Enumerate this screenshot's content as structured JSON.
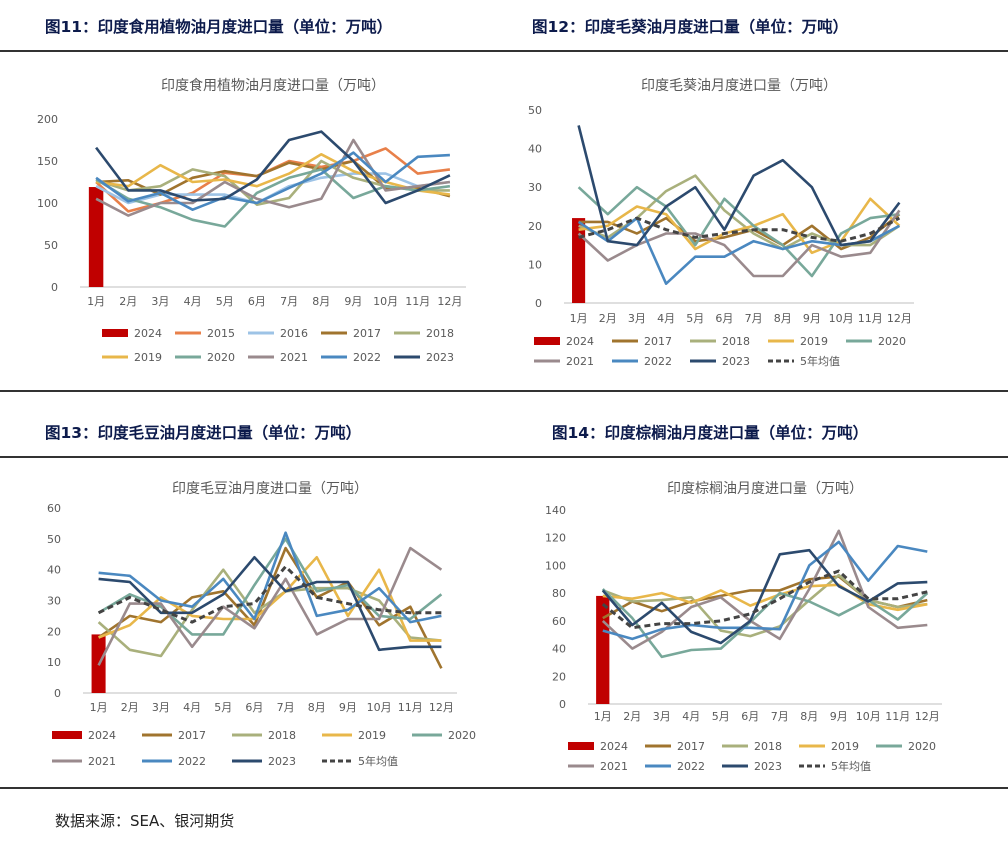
{
  "figures": [
    {
      "caption": "图11：印度食用植物油月度进口量（单位：万吨）",
      "chart_data": {
        "type": "line",
        "title": "印度食用植物油月度进口量（万吨）",
        "categories": [
          "1月",
          "2月",
          "3月",
          "4月",
          "5月",
          "6月",
          "7月",
          "8月",
          "9月",
          "10月",
          "11月",
          "12月"
        ],
        "ylim": [
          0,
          200
        ],
        "yticks": [
          0,
          50,
          100,
          150,
          200
        ],
        "grid": false,
        "legend": "bottom",
        "bar_series": {
          "name": "2024",
          "color": "#c00000",
          "values": [
            119
          ]
        },
        "series": [
          {
            "name": "2015",
            "color": "#e8804a",
            "dash": false,
            "values": [
              125,
              90,
              100,
              112,
              136,
              132,
              150,
              143,
              150,
              165,
              135,
              140
            ]
          },
          {
            "name": "2016",
            "color": "#9dc3e6",
            "dash": false,
            "values": [
              120,
              100,
              110,
              110,
              110,
              100,
              120,
              130,
              135,
              135,
              120,
              125
            ]
          },
          {
            "name": "2017",
            "color": "#a0742e",
            "dash": false,
            "values": [
              125,
              127,
              110,
              130,
              138,
              132,
              148,
              140,
              150,
              118,
              118,
              108
            ]
          },
          {
            "name": "2018",
            "color": "#a9b07c",
            "dash": false,
            "values": [
              127,
              115,
              120,
              140,
              132,
              98,
              106,
              150,
              130,
              120,
              115,
              115
            ]
          },
          {
            "name": "2019",
            "color": "#e8b74a",
            "dash": false,
            "values": [
              125,
              120,
              145,
              125,
              128,
              120,
              135,
              158,
              138,
              125,
              115,
              110
            ]
          },
          {
            "name": "2020",
            "color": "#78a89a",
            "dash": false,
            "values": [
              128,
              105,
              95,
              80,
              72,
              112,
              130,
              140,
              106,
              120,
              115,
              120
            ]
          },
          {
            "name": "2021",
            "color": "#9a8a8d",
            "dash": false,
            "values": [
              105,
              85,
              100,
              100,
              125,
              105,
              95,
              105,
              175,
              115,
              120,
              125
            ]
          },
          {
            "name": "2022",
            "color": "#4a88c0",
            "dash": false,
            "values": [
              130,
              102,
              112,
              92,
              107,
              100,
              118,
              135,
              160,
              125,
              155,
              157
            ]
          },
          {
            "name": "2023",
            "color": "#2c4a6e",
            "dash": false,
            "values": [
              166,
              115,
              115,
              103,
              105,
              128,
              175,
              185,
              150,
              100,
              115,
              133
            ]
          }
        ]
      }
    },
    {
      "caption": "图12：印度毛葵油月度进口量（单位：万吨）",
      "chart_data": {
        "type": "line",
        "title": "印度毛葵油月度进口量（万吨）",
        "categories": [
          "1月",
          "2月",
          "3月",
          "4月",
          "5月",
          "6月",
          "7月",
          "8月",
          "9月",
          "10月",
          "11月",
          "12月"
        ],
        "ylim": [
          0,
          50
        ],
        "yticks": [
          0,
          10,
          20,
          30,
          40,
          50
        ],
        "grid": false,
        "legend": "bottom",
        "bar_series": {
          "name": "2024",
          "color": "#c00000",
          "values": [
            22
          ]
        },
        "series": [
          {
            "name": "2017",
            "color": "#a0742e",
            "dash": false,
            "values": [
              21,
              21,
              18,
              22,
              16,
              17,
              19,
              15,
              20,
              14,
              17,
              23
            ]
          },
          {
            "name": "2018",
            "color": "#a9b07c",
            "dash": false,
            "values": [
              20,
              17,
              22,
              29,
              33,
              24,
              18,
              14,
              18,
              15,
              15,
              20
            ]
          },
          {
            "name": "2019",
            "color": "#e8b74a",
            "dash": false,
            "values": [
              19,
              20,
              25,
              23,
              14,
              18,
              20,
              23,
              13,
              16,
              27,
              20
            ]
          },
          {
            "name": "2020",
            "color": "#78a89a",
            "dash": false,
            "values": [
              30,
              23,
              30,
              25,
              15,
              27,
              20,
              15,
              7,
              18,
              22,
              23
            ]
          },
          {
            "name": "2021",
            "color": "#9a8a8d",
            "dash": false,
            "values": [
              18,
              11,
              15,
              18,
              18,
              15,
              7,
              7,
              15,
              12,
              13,
              24
            ]
          },
          {
            "name": "2022",
            "color": "#4a88c0",
            "dash": false,
            "values": [
              21,
              16,
              22,
              5,
              12,
              12,
              16,
              14,
              16,
              15,
              16,
              20
            ]
          },
          {
            "name": "2023",
            "color": "#2c4a6e",
            "dash": false,
            "values": [
              46,
              16,
              15,
              25,
              30,
              19,
              33,
              37,
              30,
              15,
              16,
              26
            ]
          },
          {
            "name": "5年均值",
            "color": "#444444",
            "dash": true,
            "values": [
              17,
              19,
              22,
              19,
              17,
              18,
              19,
              19,
              17,
              16,
              18,
              22
            ]
          }
        ]
      }
    },
    {
      "caption": "图13：印度毛豆油月度进口量（单位：万吨）",
      "chart_data": {
        "type": "line",
        "title": "印度毛豆油月度进口量（万吨）",
        "categories": [
          "1月",
          "2月",
          "3月",
          "4月",
          "5月",
          "6月",
          "7月",
          "8月",
          "9月",
          "10月",
          "11月",
          "12月"
        ],
        "ylim": [
          0,
          60
        ],
        "yticks": [
          0,
          10,
          20,
          30,
          40,
          50,
          60
        ],
        "grid": false,
        "legend": "bottom",
        "bar_series": {
          "name": "2024",
          "color": "#c00000",
          "values": [
            19
          ]
        },
        "series": [
          {
            "name": "2017",
            "color": "#a0742e",
            "dash": false,
            "values": [
              18,
              25,
              23,
              31,
              33,
              22,
              47,
              31,
              36,
              22,
              28,
              8
            ]
          },
          {
            "name": "2018",
            "color": "#a9b07c",
            "dash": false,
            "values": [
              23,
              14,
              12,
              27,
              40,
              26,
              33,
              34,
              34,
              30,
              18,
              17
            ]
          },
          {
            "name": "2019",
            "color": "#e8b74a",
            "dash": false,
            "values": [
              18,
              22,
              31,
              25,
              24,
              24,
              33,
              44,
              25,
              40,
              17,
              17
            ]
          },
          {
            "name": "2020",
            "color": "#78a89a",
            "dash": false,
            "values": [
              26,
              32,
              28,
              19,
              19,
              35,
              50,
              33,
              35,
              25,
              24,
              32
            ]
          },
          {
            "name": "2021",
            "color": "#9a8a8d",
            "dash": false,
            "values": [
              9,
              29,
              29,
              15,
              28,
              21,
              37,
              19,
              24,
              24,
              47,
              40
            ]
          },
          {
            "name": "2022",
            "color": "#4a88c0",
            "dash": false,
            "values": [
              39,
              38,
              30,
              28,
              37,
              24,
              52,
              25,
              27,
              34,
              23,
              25
            ]
          },
          {
            "name": "2023",
            "color": "#2c4a6e",
            "dash": false,
            "values": [
              37,
              36,
              26,
              26,
              32,
              44,
              33,
              36,
              36,
              14,
              15,
              15
            ]
          },
          {
            "name": "5年均值",
            "color": "#444444",
            "dash": true,
            "values": [
              26,
              31,
              27,
              23,
              28,
              29,
              41,
              31,
              29,
              27,
              26,
              26
            ]
          }
        ]
      }
    },
    {
      "caption": "图14：印度棕榈油月度进口量（单位：万吨）",
      "chart_data": {
        "type": "line",
        "title": "印度棕榈油月度进口量（万吨）",
        "categories": [
          "1月",
          "2月",
          "3月",
          "4月",
          "5月",
          "6月",
          "7月",
          "8月",
          "9月",
          "10月",
          "11月",
          "12月"
        ],
        "ylim": [
          0,
          140
        ],
        "yticks": [
          0,
          20,
          40,
          60,
          80,
          100,
          120,
          140
        ],
        "grid": false,
        "legend": "bottom",
        "bar_series": {
          "name": "2024",
          "color": "#c00000",
          "values": [
            78
          ]
        },
        "series": [
          {
            "name": "2017",
            "color": "#a0742e",
            "dash": false,
            "values": [
              62,
              74,
              67,
              74,
              78,
              82,
              82,
              90,
              92,
              75,
              70,
              75
            ]
          },
          {
            "name": "2018",
            "color": "#a9b07c",
            "dash": false,
            "values": [
              82,
              74,
              75,
              77,
              53,
              49,
              56,
              75,
              93,
              75,
              70,
              72
            ]
          },
          {
            "name": "2019",
            "color": "#e8b74a",
            "dash": false,
            "values": [
              78,
              76,
              80,
              73,
              82,
              71,
              79,
              85,
              86,
              72,
              68,
              72
            ]
          },
          {
            "name": "2020",
            "color": "#78a89a",
            "dash": false,
            "values": [
              83,
              62,
              34,
              39,
              40,
              59,
              80,
              74,
              64,
              75,
              61,
              80
            ]
          },
          {
            "name": "2021",
            "color": "#9a8a8d",
            "dash": false,
            "values": [
              60,
              40,
              52,
              70,
              77,
              60,
              47,
              83,
              125,
              70,
              55,
              57
            ]
          },
          {
            "name": "2022",
            "color": "#4a88c0",
            "dash": false,
            "values": [
              53,
              47,
              54,
              57,
              55,
              55,
              54,
              100,
              117,
              89,
              114,
              110
            ]
          },
          {
            "name": "2023",
            "color": "#2c4a6e",
            "dash": false,
            "values": [
              82,
              57,
              73,
              52,
              44,
              60,
              108,
              111,
              85,
              74,
              87,
              88
            ]
          },
          {
            "name": "5年均值",
            "color": "#444444",
            "dash": true,
            "values": [
              72,
              55,
              58,
              58,
              60,
              65,
              76,
              88,
              96,
              76,
              76,
              81
            ]
          }
        ]
      }
    }
  ],
  "source": "数据来源：SEA、银河期货"
}
